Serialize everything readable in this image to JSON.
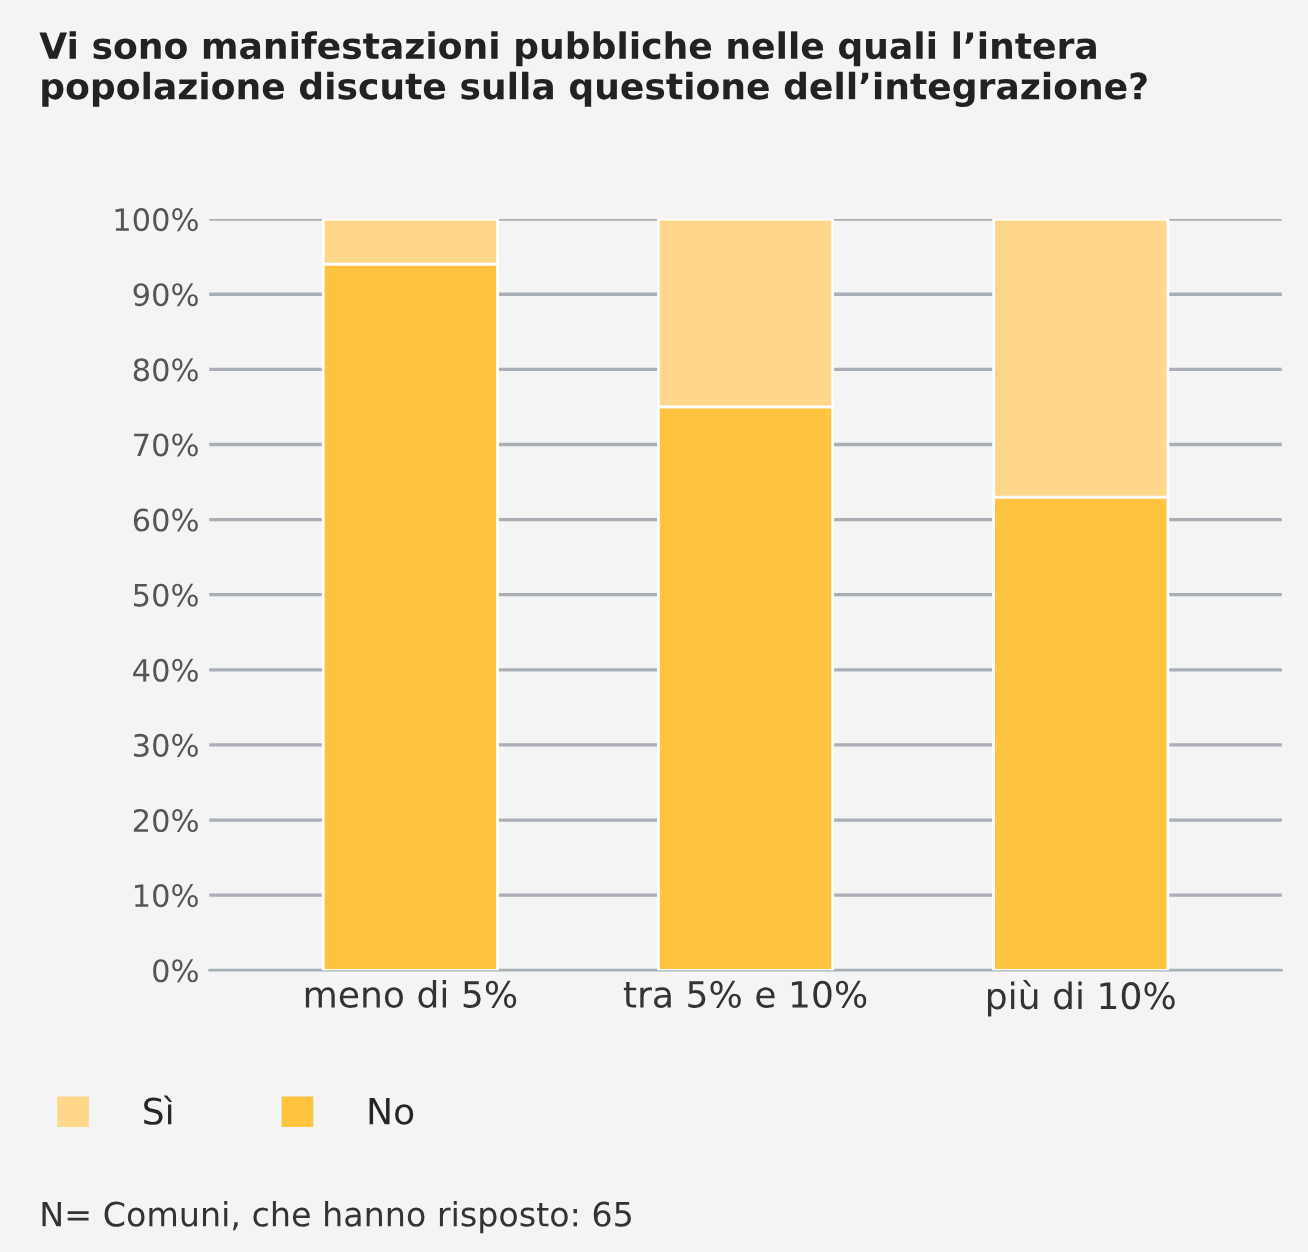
{
  "chart_data": {
    "type": "bar",
    "title": "Vi sono manifestazioni pubbliche nelle quali l’intera popolazione discute sulla questione dell’integrazione?",
    "categories": [
      "meno di 5%",
      "tra 5% e 10%",
      "più di 10%"
    ],
    "stacked": true,
    "series": [
      {
        "name": "No",
        "color": "#fec33f",
        "values": [
          94,
          75,
          63
        ]
      },
      {
        "name": "Sì",
        "color": "#fed78b",
        "values": [
          6,
          25,
          37
        ]
      }
    ],
    "ylim": [
      0,
      100
    ],
    "yticks": [
      {
        "value": 0,
        "label": "0%"
      },
      {
        "value": 10,
        "label": "10%"
      },
      {
        "value": 20,
        "label": "20%"
      },
      {
        "value": 30,
        "label": "30%"
      },
      {
        "value": 40,
        "label": "40%"
      },
      {
        "value": 50,
        "label": "50%"
      },
      {
        "value": 60,
        "label": "60%"
      },
      {
        "value": 70,
        "label": "70%"
      },
      {
        "value": 80,
        "label": "80%"
      },
      {
        "value": 90,
        "label": "90%"
      },
      {
        "value": 100,
        "label": "100%"
      }
    ],
    "grid": "y",
    "legend": "bottom",
    "annotations": [
      "N= Comuni, che hanno risposto: 65"
    ]
  }
}
